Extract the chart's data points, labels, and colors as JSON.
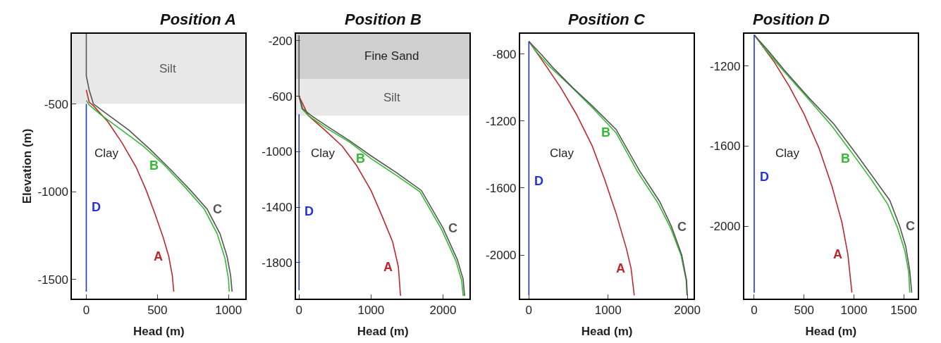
{
  "chart_data": [
    {
      "type": "line",
      "title": "Position A",
      "xlabel": "Head (m)",
      "ylabel": "Elevation (m)",
      "xlim": [
        -100,
        1120
      ],
      "ylim": [
        -1610,
        -100
      ],
      "xticks": [
        0,
        500,
        1000
      ],
      "yticks": [
        -500,
        -1000,
        -1500
      ],
      "grid": false,
      "legend": false,
      "marker": "none",
      "line_style": "solid",
      "bands": [
        {
          "axis": "y",
          "from": -500,
          "to": -100,
          "label": "Silt",
          "color": "#e8e8e8"
        }
      ],
      "annotations": [
        "Clay"
      ],
      "series": [
        {
          "name": "A",
          "color": "#c0272d",
          "x": [
            0,
            20,
            50,
            150,
            250,
            350,
            420,
            480,
            540,
            580,
            605,
            615
          ],
          "values": [
            -420,
            -490,
            -510,
            -600,
            -720,
            -860,
            -990,
            -1120,
            -1260,
            -1370,
            -1480,
            -1570
          ]
        },
        {
          "name": "B",
          "color": "#33bb33",
          "x": [
            0,
            20,
            100,
            250,
            400,
            550,
            700,
            830,
            920,
            975,
            1000,
            1005
          ],
          "values": [
            -480,
            -505,
            -560,
            -650,
            -740,
            -850,
            -980,
            -1100,
            -1240,
            -1380,
            -1500,
            -1570
          ]
        },
        {
          "name": "C",
          "color": "#555555",
          "x": [
            0,
            0,
            20,
            50,
            150,
            300,
            450,
            600,
            730,
            850,
            940,
            990,
            1015,
            1025
          ],
          "values": [
            -100,
            -340,
            -420,
            -500,
            -560,
            -650,
            -760,
            -880,
            -990,
            -1100,
            -1240,
            -1370,
            -1480,
            -1570
          ]
        },
        {
          "name": "D",
          "color": "#2233dd",
          "x": [
            0,
            0
          ],
          "values": [
            -500,
            -1570
          ]
        }
      ]
    },
    {
      "type": "line",
      "title": "Position B",
      "xlabel": "Head (m)",
      "xlim": [
        -40,
        2370
      ],
      "ylim": [
        -2060,
        -150
      ],
      "xticks": [
        0,
        1000,
        2000
      ],
      "yticks": [
        -200,
        -600,
        -1000,
        -1400,
        -1800
      ],
      "grid": false,
      "legend": false,
      "marker": "none",
      "line_style": "solid",
      "bands": [
        {
          "axis": "y",
          "from": -475,
          "to": -150,
          "label": "Fine Sand",
          "color": "#cfcfcf"
        },
        {
          "axis": "y",
          "from": -740,
          "to": -475,
          "label": "Silt",
          "color": "#e8e8e8"
        }
      ],
      "annotations": [
        "Clay"
      ],
      "series": [
        {
          "name": "A",
          "color": "#c0272d",
          "x": [
            0,
            130,
            350,
            600,
            800,
            1000,
            1150,
            1300,
            1380,
            1410
          ],
          "values": [
            -600,
            -740,
            -840,
            -960,
            -1100,
            -1280,
            -1460,
            -1650,
            -1830,
            -2040
          ]
        },
        {
          "name": "B",
          "color": "#33bb33",
          "x": [
            0,
            40,
            130,
            380,
            700,
            1000,
            1350,
            1680,
            1980,
            2180,
            2260,
            2280
          ],
          "values": [
            -600,
            -690,
            -740,
            -830,
            -930,
            -1050,
            -1170,
            -1290,
            -1560,
            -1790,
            -1930,
            -2040
          ]
        },
        {
          "name": "C",
          "color": "#555555",
          "x": [
            0,
            0,
            50,
            170,
            400,
            700,
            1000,
            1350,
            1700,
            2000,
            2200,
            2280,
            2300
          ],
          "values": [
            -160,
            -600,
            -690,
            -740,
            -820,
            -920,
            -1030,
            -1150,
            -1280,
            -1550,
            -1780,
            -1920,
            -2040
          ]
        },
        {
          "name": "D",
          "color": "#2233dd",
          "x": [
            0,
            0
          ],
          "values": [
            -730,
            -2000
          ]
        }
      ]
    },
    {
      "type": "line",
      "title": "Position C",
      "xlabel": "Head (m)",
      "xlim": [
        -110,
        2080
      ],
      "ylim": [
        -2260,
        -680
      ],
      "xticks": [
        0,
        1000,
        2000
      ],
      "yticks": [
        -800,
        -1200,
        -1600,
        -2000
      ],
      "grid": false,
      "legend": false,
      "marker": "none",
      "line_style": "solid",
      "annotations": [
        "Clay"
      ],
      "series": [
        {
          "name": "A",
          "color": "#c0272d",
          "x": [
            0,
            200,
            400,
            600,
            800,
            950,
            1100,
            1230,
            1290,
            1330
          ],
          "values": [
            -725,
            -860,
            -1000,
            -1160,
            -1350,
            -1540,
            -1750,
            -1960,
            -2080,
            -2240
          ]
        },
        {
          "name": "B",
          "color": "#33bb33",
          "x": [
            0,
            100,
            250,
            500,
            800,
            1100,
            1380,
            1630,
            1790,
            1920,
            1985,
            1995
          ],
          "values": [
            -725,
            -790,
            -870,
            -980,
            -1120,
            -1270,
            -1510,
            -1690,
            -1840,
            -2000,
            -2150,
            -2240
          ]
        },
        {
          "name": "C",
          "color": "#555555",
          "x": [
            0,
            150,
            300,
            550,
            800,
            1100,
            1400,
            1650,
            1800,
            1930,
            1990,
            2000
          ],
          "values": [
            -725,
            -800,
            -880,
            -1000,
            -1110,
            -1250,
            -1500,
            -1680,
            -1830,
            -2000,
            -2150,
            -2240
          ]
        },
        {
          "name": "D",
          "color": "#2233dd",
          "x": [
            0,
            0
          ],
          "values": [
            -725,
            -2240
          ]
        }
      ]
    },
    {
      "type": "line",
      "title": "Position D",
      "xlabel": "Head (m)",
      "xlim": [
        -100,
        1640
      ],
      "ylim": [
        -2360,
        -1040
      ],
      "xticks": [
        0,
        500,
        1000,
        1500
      ],
      "yticks": [
        -1200,
        -1600,
        -2000
      ],
      "grid": false,
      "legend": false,
      "marker": "none",
      "line_style": "solid",
      "annotations": [
        "Clay"
      ],
      "series": [
        {
          "name": "A",
          "color": "#c0272d",
          "x": [
            0,
            200,
            350,
            500,
            650,
            780,
            880,
            940,
            980
          ],
          "values": [
            -1045,
            -1180,
            -1300,
            -1440,
            -1610,
            -1800,
            -1980,
            -2140,
            -2330
          ]
        },
        {
          "name": "B",
          "color": "#33bb33",
          "x": [
            0,
            100,
            250,
            500,
            780,
            1020,
            1180,
            1340,
            1440,
            1510,
            1550,
            1560
          ],
          "values": [
            -1045,
            -1110,
            -1200,
            -1340,
            -1500,
            -1660,
            -1770,
            -1890,
            -2010,
            -2120,
            -2230,
            -2330
          ]
        },
        {
          "name": "C",
          "color": "#555555",
          "x": [
            0,
            150,
            300,
            550,
            800,
            1040,
            1200,
            1360,
            1460,
            1520,
            1560,
            1580
          ],
          "values": [
            -1045,
            -1130,
            -1220,
            -1360,
            -1490,
            -1650,
            -1760,
            -1870,
            -2000,
            -2100,
            -2220,
            -2330
          ]
        },
        {
          "name": "D",
          "color": "#2233dd",
          "x": [
            0,
            0
          ],
          "values": [
            -1045,
            -2330
          ]
        }
      ]
    }
  ]
}
